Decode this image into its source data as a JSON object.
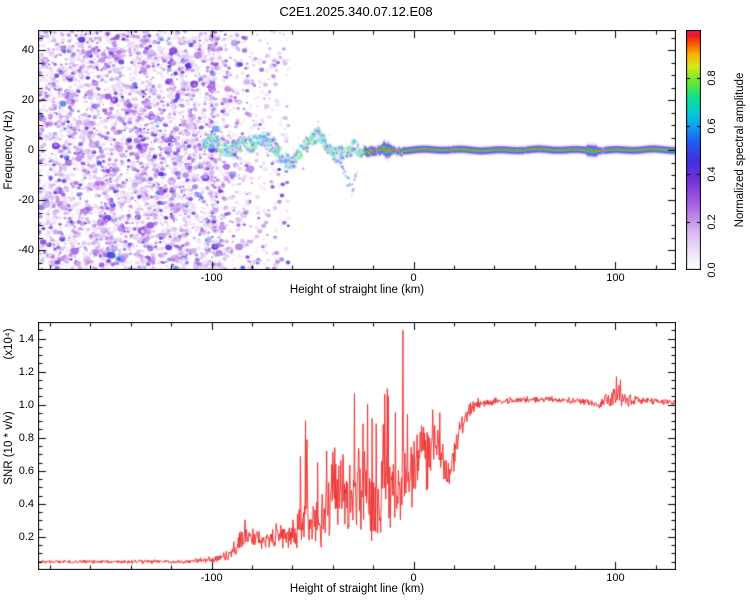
{
  "title": "C2E1.2025.340.07.12.E08",
  "chart_data": [
    {
      "type": "heatmap",
      "name": "spectrogram",
      "xlabel": "Height of straight line (km)",
      "ylabel": "Frequency (Hz)",
      "xlim": [
        -186,
        130
      ],
      "ylim": [
        -48,
        48
      ],
      "xticks": {
        "values": [
          -100,
          0,
          100
        ],
        "labels": [
          "-100",
          "0",
          "100"
        ],
        "minor_step": 20
      },
      "yticks": {
        "values": [
          -40,
          -20,
          0,
          20,
          40
        ],
        "labels": [
          "-40",
          "-20",
          "0",
          "20",
          "40"
        ],
        "minor_step": 5
      },
      "colorbar": {
        "label": "Normalized spectral amplitude",
        "range": [
          0,
          1
        ],
        "ticks": {
          "values": [
            0,
            0.2,
            0.4,
            0.6,
            0.8
          ],
          "labels": [
            "0.0",
            "0.2",
            "0.4",
            "0.6",
            "0.8"
          ]
        }
      },
      "colormap": [
        [
          0.0,
          "#ffffff"
        ],
        [
          0.06,
          "#f3eafb"
        ],
        [
          0.16,
          "#d9b8f2"
        ],
        [
          0.28,
          "#a55fe0"
        ],
        [
          0.38,
          "#7030d8"
        ],
        [
          0.46,
          "#4030e0"
        ],
        [
          0.54,
          "#2060f0"
        ],
        [
          0.6,
          "#10a0f0"
        ],
        [
          0.66,
          "#00cfd0"
        ],
        [
          0.72,
          "#10e090"
        ],
        [
          0.79,
          "#70e830"
        ],
        [
          0.85,
          "#d8e818"
        ],
        [
          0.9,
          "#f8b400"
        ],
        [
          0.95,
          "#f85000"
        ],
        [
          0.98,
          "#f01820"
        ],
        [
          1.0,
          "#e8187a"
        ]
      ],
      "noise_region": {
        "x_end": -100,
        "taper_end": -62,
        "density": 5200,
        "value_max": 0.5
      },
      "signal_track": {
        "wavy_centerline": [
          [
            -104,
            2
          ],
          [
            -100,
            4
          ],
          [
            -96,
            2
          ],
          [
            -92,
            -1
          ],
          [
            -88,
            1
          ],
          [
            -84,
            3
          ],
          [
            -80,
            2
          ],
          [
            -76,
            5
          ],
          [
            -72,
            4
          ],
          [
            -68,
            0
          ],
          [
            -64,
            -4
          ],
          [
            -60,
            -5
          ],
          [
            -56,
            -1
          ],
          [
            -53,
            2
          ],
          [
            -50,
            5
          ],
          [
            -47,
            6
          ],
          [
            -44,
            3
          ],
          [
            -41,
            0
          ],
          [
            -38,
            -2
          ],
          [
            -35,
            -1
          ],
          [
            -32,
            0
          ],
          [
            -29,
            1
          ],
          [
            -26,
            0
          ],
          [
            -24,
            0
          ]
        ],
        "spur": [
          [
            -37,
            -4
          ],
          [
            -35,
            -8
          ],
          [
            -33,
            -12
          ],
          [
            -31,
            -15
          ],
          [
            -30,
            -16
          ],
          [
            -29,
            -11
          ],
          [
            -28,
            -7
          ]
        ],
        "tight_start": -24,
        "gaps": [
          [
            -19,
            -17.5
          ],
          [
            -9.5,
            -8
          ],
          [
            18,
            19
          ],
          [
            55,
            55.8
          ],
          [
            93,
            94.5
          ]
        ],
        "bulges": [
          [
            -15,
            -11
          ],
          [
            86,
            91
          ]
        ]
      }
    },
    {
      "type": "line",
      "name": "snr",
      "xlabel": "Height of straight line (km)",
      "ylabel": "SNR (10 * v/v)",
      "scale_label": "(x10⁴)",
      "xlim": [
        -186,
        130
      ],
      "ylim": [
        0,
        1.5
      ],
      "xticks": {
        "values": [
          -100,
          0,
          100
        ],
        "labels": [
          "-100",
          "0",
          "100"
        ],
        "minor_step": 20
      },
      "yticks": {
        "values": [
          0.2,
          0.4,
          0.6,
          0.8,
          1.0,
          1.2,
          1.4
        ],
        "labels": [
          "0.2",
          "0.4",
          "0.6",
          "0.8",
          "1.0",
          "1.2",
          "1.4"
        ],
        "minor_step": 0.05
      },
      "line_color": "#ee2b2b",
      "envelope": [
        [
          -186,
          0.05,
          0.012
        ],
        [
          -112,
          0.05,
          0.014
        ],
        [
          -98,
          0.065,
          0.025
        ],
        [
          -90,
          0.1,
          0.05
        ],
        [
          -84,
          0.22,
          0.09
        ],
        [
          -79,
          0.2,
          0.08
        ],
        [
          -73,
          0.17,
          0.06
        ],
        [
          -67,
          0.22,
          0.09
        ],
        [
          -61,
          0.19,
          0.09
        ],
        [
          -57,
          0.28,
          0.18
        ],
        [
          -53,
          0.42,
          0.25
        ],
        [
          -50,
          0.3,
          0.18
        ],
        [
          -46,
          0.27,
          0.15
        ],
        [
          -43,
          0.42,
          0.27
        ],
        [
          -39,
          0.5,
          0.3
        ],
        [
          -35,
          0.44,
          0.3
        ],
        [
          -31,
          0.38,
          0.27
        ],
        [
          -27,
          0.5,
          0.3
        ],
        [
          -23,
          0.44,
          0.28
        ],
        [
          -19,
          0.38,
          0.24
        ],
        [
          -15,
          0.52,
          0.3
        ],
        [
          -11,
          0.48,
          0.27
        ],
        [
          -8,
          0.44,
          0.24
        ],
        [
          -5,
          0.58,
          0.28
        ],
        [
          -2,
          0.55,
          0.24
        ],
        [
          1,
          0.65,
          0.24
        ],
        [
          4,
          0.74,
          0.2
        ],
        [
          7,
          0.68,
          0.22
        ],
        [
          10,
          0.78,
          0.16
        ],
        [
          13,
          0.68,
          0.17
        ],
        [
          16,
          0.6,
          0.11
        ],
        [
          18,
          0.58,
          0.09
        ],
        [
          21,
          0.74,
          0.11
        ],
        [
          24,
          0.87,
          0.08
        ],
        [
          27,
          0.94,
          0.06
        ],
        [
          31,
          1.0,
          0.04
        ],
        [
          40,
          1.02,
          0.025
        ],
        [
          55,
          1.03,
          0.02
        ],
        [
          70,
          1.03,
          0.02
        ],
        [
          85,
          1.02,
          0.025
        ],
        [
          92,
          1.0,
          0.04
        ],
        [
          97,
          1.04,
          0.08
        ],
        [
          102,
          1.07,
          0.09
        ],
        [
          106,
          1.02,
          0.05
        ],
        [
          111,
          1.03,
          0.03
        ],
        [
          120,
          1.02,
          0.022
        ],
        [
          130,
          1.01,
          0.022
        ]
      ],
      "spikes": [
        [
          -5.2,
          1.45
        ],
        [
          -53,
          0.67
        ],
        [
          -43,
          0.72
        ],
        [
          -39,
          0.74
        ],
        [
          -35,
          0.7
        ],
        [
          -27,
          0.72
        ],
        [
          -15,
          0.88
        ],
        [
          9.5,
          0.97
        ],
        [
          100.5,
          1.17
        ],
        [
          102.5,
          1.15
        ]
      ]
    }
  ]
}
